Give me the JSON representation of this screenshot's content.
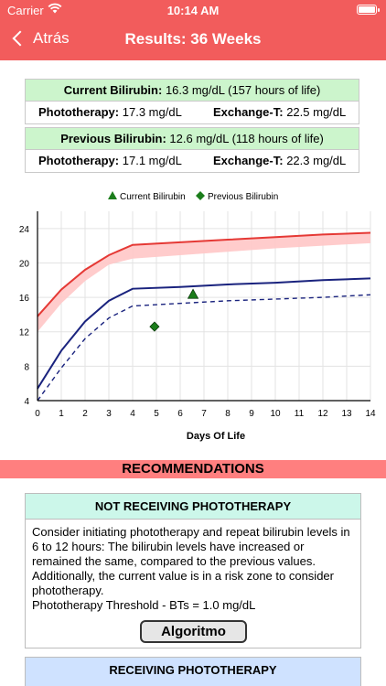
{
  "status_bar": {
    "carrier": "Carrier",
    "time": "10:14 AM"
  },
  "nav": {
    "back_label": "Atrás",
    "title": "Results: 36 Weeks"
  },
  "current": {
    "label": "Current Bilirubin:",
    "value": "16.3 mg/dL (157 hours of life)",
    "photo_label": "Phototherapy:",
    "photo_value": "17.3 mg/dL",
    "exchange_label": "Exchange-T:",
    "exchange_value": "22.5 mg/dL"
  },
  "previous": {
    "label": "Previous Bilirubin:",
    "value": "12.6 mg/dL (118 hours of life)",
    "photo_label": "Phototherapy:",
    "photo_value": "17.1 mg/dL",
    "exchange_label": "Exchange-T:",
    "exchange_value": "22.3 mg/dL"
  },
  "chart_data": {
    "type": "line",
    "xlabel": "Days Of Life",
    "ylabel": "",
    "xlim": [
      0,
      14
    ],
    "ylim": [
      4,
      26
    ],
    "x_ticks": [
      0,
      1,
      2,
      3,
      4,
      5,
      6,
      7,
      8,
      9,
      10,
      11,
      12,
      13,
      14
    ],
    "y_ticks": [
      4,
      8,
      12,
      16,
      20,
      24
    ],
    "grid": true,
    "legend_position": "top-center",
    "legend": [
      "Current Bilirubin",
      "Previous Bilirubin"
    ],
    "series": [
      {
        "color": "#e53935",
        "style": "solid",
        "x": [
          0,
          1,
          2,
          3,
          4,
          6,
          8,
          10,
          12,
          14
        ],
        "y": [
          13.8,
          16.9,
          19.2,
          20.9,
          22.1,
          22.4,
          22.7,
          23.0,
          23.3,
          23.5
        ]
      },
      {
        "color": "#ffc7c7",
        "style": "band",
        "x": [
          0,
          1,
          2,
          3,
          4,
          6,
          8,
          10,
          12,
          14
        ],
        "y": [
          12.0,
          15.3,
          17.9,
          19.8,
          20.5,
          20.9,
          21.3,
          21.7,
          22.0,
          22.3
        ]
      },
      {
        "color": "#1a237e",
        "style": "solid",
        "x": [
          0,
          1,
          2,
          3,
          4,
          6,
          8,
          10,
          12,
          14
        ],
        "y": [
          5.4,
          9.8,
          13.2,
          15.6,
          17.0,
          17.2,
          17.5,
          17.7,
          18.0,
          18.2
        ]
      },
      {
        "color": "#1a237e",
        "style": "dashed",
        "x": [
          0,
          1,
          2,
          3,
          4,
          6,
          8,
          10,
          12,
          14
        ],
        "y": [
          3.2,
          7.8,
          11.2,
          13.6,
          15.0,
          15.3,
          15.6,
          15.8,
          16.0,
          16.3
        ]
      }
    ],
    "points": [
      {
        "name": "Current Bilirubin",
        "marker": "triangle",
        "color": "#1b7d1b",
        "x": 6.54,
        "y": 16.3
      },
      {
        "name": "Previous Bilirubin",
        "marker": "diamond",
        "color": "#1b7d1b",
        "x": 4.92,
        "y": 12.6
      }
    ]
  },
  "recommendations": {
    "title": "RECOMMENDATIONS",
    "not_receiving": {
      "title": "NOT RECEIVING PHOTOTHERAPY",
      "text": "Consider initiating phototherapy and repeat bilirubin levels in 6 to 12 hours: The bilirubin levels have increased or remained the same, compared to the previous values. Additionally, the current value is in a risk zone to consider phototherapy.",
      "threshold": "Phototherapy Threshold - BTs = 1.0 mg/dL",
      "button": "Algoritmo"
    },
    "receiving": {
      "title": "RECEIVING PHOTOTHERAPY"
    }
  }
}
